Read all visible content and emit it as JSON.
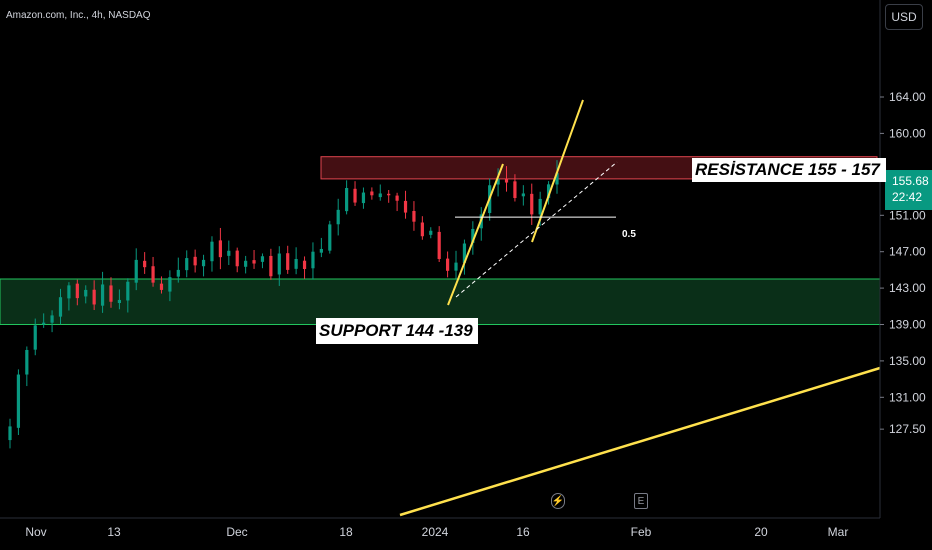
{
  "header": {
    "title": "Amazon.com, Inc., 4h, NASDAQ"
  },
  "currency_button": "USD",
  "last_price": {
    "value": "155.68",
    "countdown": "22:42",
    "color": "#089981"
  },
  "annotations": {
    "resistance": "RESİSTANCE 155 - 157",
    "support": "SUPPORT 144 -139",
    "fib_level": "0.5"
  },
  "event_icons": [
    {
      "icon": "lightning-icon",
      "glyph": "⚡"
    },
    {
      "icon": "earnings-icon",
      "glyph": "E"
    }
  ],
  "colors": {
    "up": "#089981",
    "down": "#f23645",
    "resistance_zone": "#b22833",
    "support_zone": "#0d3b1e",
    "support_border": "#22c55e",
    "trendline": "#ffe14d",
    "background": "#000000"
  },
  "chart_data": {
    "type": "candlestick",
    "symbol": "AMZN",
    "timeframe": "4h",
    "exchange": "NASDAQ",
    "ylim": [
      126,
      167.5
    ],
    "y_ticks": [
      "164.00",
      "160.00",
      "155.68",
      "151.00",
      "147.00",
      "143.00",
      "139.00",
      "135.00",
      "131.00",
      "127.50"
    ],
    "x_ticks": [
      "Nov",
      "13",
      "Dec",
      "18",
      "2024",
      "16",
      "Feb",
      "20",
      "Mar"
    ],
    "resistance_zone": [
      155,
      157
    ],
    "support_zone": [
      139,
      144
    ],
    "fib_0_5_level": 150.8,
    "closes": [
      127.8,
      133.5,
      136.2,
      138.9,
      139.2,
      140.0,
      142.0,
      143.3,
      141.9,
      142.8,
      141.2,
      143.4,
      141.5,
      141.7,
      143.7,
      146.1,
      145.3,
      143.6,
      142.8,
      144.2,
      145.0,
      146.3,
      145.5,
      146.1,
      148.1,
      146.4,
      147.1,
      145.4,
      146.0,
      145.7,
      146.5,
      144.3,
      146.8,
      145.0,
      146.2,
      145.1,
      147.0,
      147.3,
      150.0,
      151.6,
      154.0,
      152.4,
      153.5,
      153.2,
      153.4,
      153.2,
      152.6,
      151.3,
      150.3,
      148.7,
      149.3,
      146.2,
      144.9,
      145.8,
      147.9,
      149.5,
      151.1,
      154.3,
      155.0,
      154.6,
      152.9,
      153.4,
      151.1,
      152.8,
      154.4,
      155.68
    ]
  }
}
